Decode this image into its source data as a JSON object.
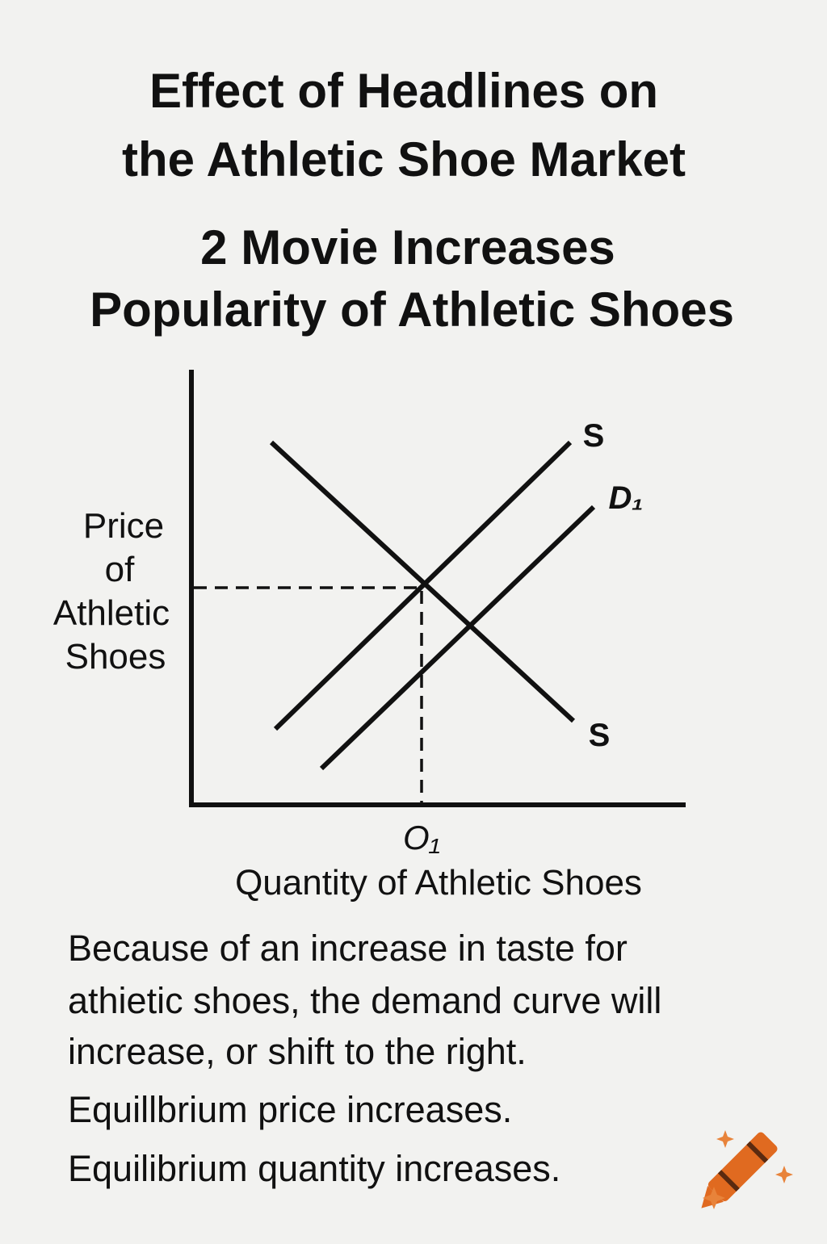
{
  "header": {
    "title_lines": [
      "Effect of Headlines on",
      "the Athletic Shoe Market"
    ],
    "subtitle_lines": [
      "2 Movie Increases",
      "Popularity of Athletic Shoes"
    ]
  },
  "diagram": {
    "y_axis_label_lines": [
      "Price",
      "of",
      "Athletic",
      "Shoes"
    ],
    "x_axis_label": "Quantity of Athletic Shoes",
    "quantity_label": "O₁",
    "curve_labels": [
      "S",
      "D₁",
      "S"
    ]
  },
  "explanation": {
    "lines": [
      "Because of an increase in taste for",
      "athietic shoes, the demand curve will",
      "increase, or shift to the right."
    ],
    "conclusions": [
      "Equillbrium price increases.",
      "Equilibrium quantity increases."
    ]
  }
}
